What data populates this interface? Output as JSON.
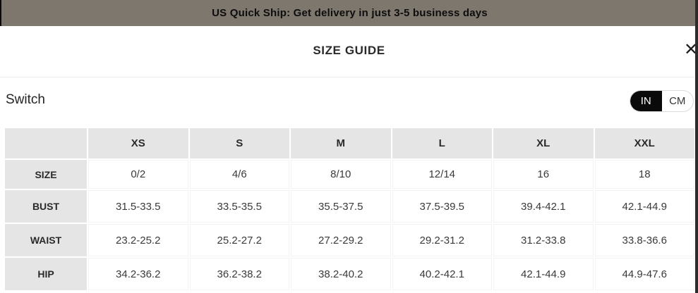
{
  "banner": {
    "text": "US Quick Ship: Get delivery in just 3-5 business days"
  },
  "dialog": {
    "title": "SIZE GUIDE",
    "close_glyph": "✕"
  },
  "unit_switch": {
    "label": "Switch",
    "in_option": "IN",
    "cm_option": "CM",
    "selected": "IN"
  },
  "size_table": {
    "columns": [
      "XS",
      "S",
      "M",
      "L",
      "XL",
      "XXL"
    ],
    "rows": [
      {
        "label": "SIZE",
        "values": [
          "0/2",
          "4/6",
          "8/10",
          "12/14",
          "16",
          "18"
        ]
      },
      {
        "label": "BUST",
        "values": [
          "31.5-33.5",
          "33.5-35.5",
          "35.5-37.5",
          "37.5-39.5",
          "39.4-42.1",
          "42.1-44.9"
        ]
      },
      {
        "label": "WAIST",
        "values": [
          "23.2-25.2",
          "25.2-27.2",
          "27.2-29.2",
          "29.2-31.2",
          "31.2-33.8",
          "33.8-36.6"
        ]
      },
      {
        "label": "HIP",
        "values": [
          "34.2-36.2",
          "36.2-38.2",
          "38.2-40.2",
          "40.2-42.1",
          "42.1-44.9",
          "44.9-47.6"
        ]
      }
    ]
  },
  "colors": {
    "banner_bg": "#7e776e",
    "table_header_bg": "#e5e5e5",
    "toggle_active_bg": "#0a0a0a",
    "scroll_strip": "#2e2c2a"
  }
}
